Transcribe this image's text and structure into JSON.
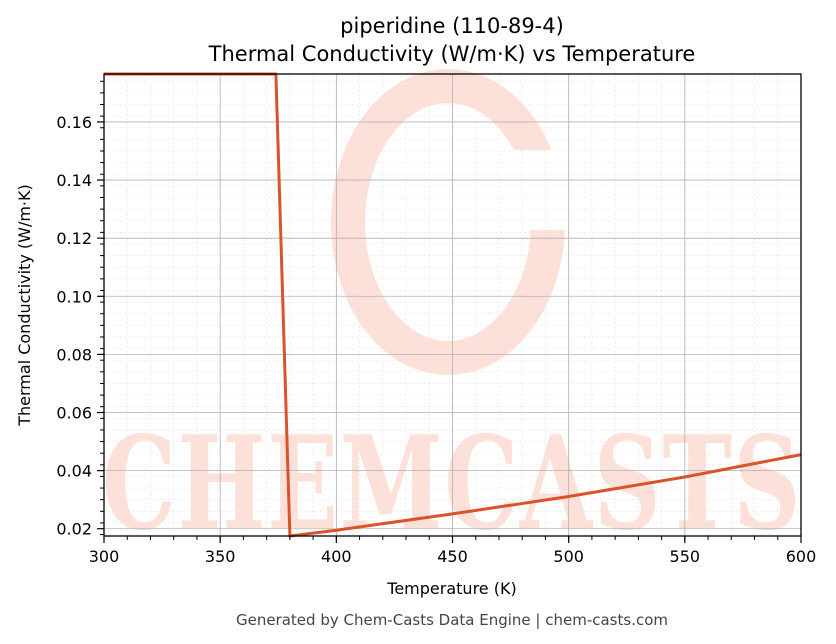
{
  "chart_data": {
    "type": "line",
    "title": "piperidine (110-89-4)",
    "subtitle": "Thermal Conductivity (W/m·K) vs Temperature",
    "xlabel": "Temperature (K)",
    "ylabel": "Thermal Conductivity (W/m·K)",
    "xlim": [
      300,
      600
    ],
    "ylim": [
      0.0175,
      0.1765
    ],
    "xticks": [
      300,
      350,
      400,
      450,
      500,
      550,
      600
    ],
    "yticks": [
      0.02,
      0.04,
      0.06,
      0.08,
      0.1,
      0.12,
      0.14,
      0.16
    ],
    "ytick_labels": [
      "0.02",
      "0.04",
      "0.06",
      "0.08",
      "0.10",
      "0.12",
      "0.14",
      "0.16"
    ],
    "grid": true,
    "series": [
      {
        "color": "#d9532b",
        "x": [
          300,
          374,
          380,
          400,
          450,
          500,
          550,
          600
        ],
        "y": [
          0.1765,
          0.1765,
          0.0175,
          0.0195,
          0.0251,
          0.0311,
          0.0378,
          0.0455
        ]
      }
    ]
  },
  "watermark": {
    "text": "CHEMCASTS",
    "color": "#fde0d8"
  },
  "footer": "Generated by Chem-Casts Data Engine | chem-casts.com"
}
